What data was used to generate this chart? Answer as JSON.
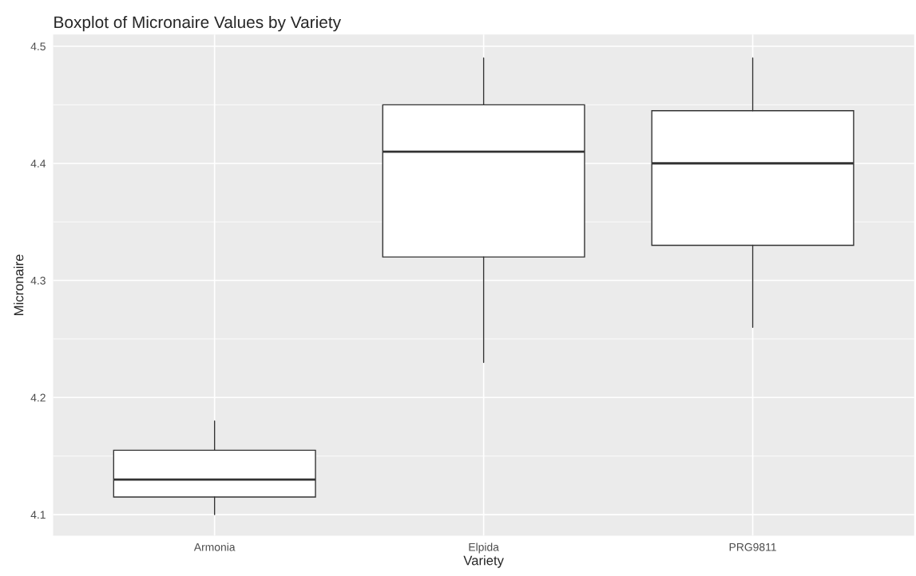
{
  "chart_data": {
    "type": "box",
    "title": "Boxplot of Micronaire Values by Variety",
    "xlabel": "Variety",
    "ylabel": "Micronaire",
    "categories": [
      "Armonia",
      "Elpida",
      "PRG9811"
    ],
    "boxes": [
      {
        "low": 4.1,
        "q1": 4.115,
        "median": 4.13,
        "q3": 4.155,
        "high": 4.18
      },
      {
        "low": 4.23,
        "q1": 4.32,
        "median": 4.41,
        "q3": 4.45,
        "high": 4.49
      },
      {
        "low": 4.26,
        "q1": 4.33,
        "median": 4.4,
        "q3": 4.445,
        "high": 4.49
      }
    ],
    "ylim": [
      4.082,
      4.51
    ],
    "yticks": [
      4.1,
      4.2,
      4.3,
      4.4,
      4.5
    ],
    "grid": true
  }
}
